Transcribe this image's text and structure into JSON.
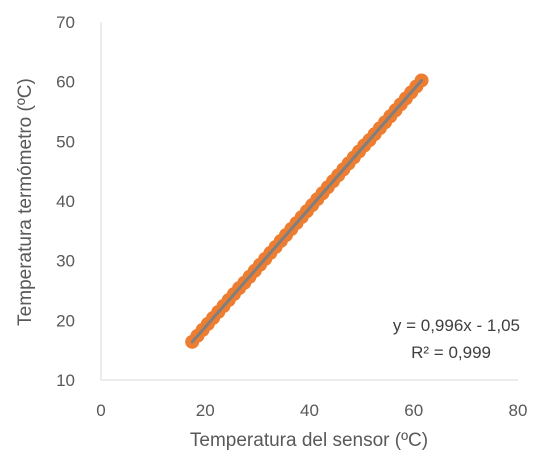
{
  "chart_data": {
    "type": "scatter",
    "title": "",
    "xlabel": "Temperatura del sensor (ºC)",
    "ylabel": "Temperatura termómetro (ºC)",
    "xlim": [
      0,
      80
    ],
    "ylim": [
      10,
      70
    ],
    "x_ticks": [
      0,
      20,
      40,
      60,
      80
    ],
    "y_ticks": [
      10,
      20,
      30,
      40,
      50,
      60,
      70
    ],
    "x_tick_labels": [
      "0",
      "20",
      "40",
      "60",
      "80"
    ],
    "y_tick_labels": [
      "10",
      "20",
      "30",
      "40",
      "50",
      "60",
      "70"
    ],
    "grid": false,
    "legend": "none",
    "marker_color": "#ed7d31",
    "trendline_color": "#7f7f7f",
    "series": [
      {
        "x": [
          17.5,
          18.5,
          19.5,
          20.5,
          21.5,
          22.5,
          23.5,
          24.5,
          25.5,
          26.5,
          27.5,
          28.5,
          29.5,
          30.5,
          31.5,
          32.5,
          33.5,
          34.5,
          35.5,
          36.5,
          37.5,
          38.5,
          39.5,
          40.5,
          41.5,
          42.5,
          43.5,
          44.5,
          45.5,
          46.5,
          47.5,
          48.5,
          49.5,
          50.5,
          51.5,
          52.5,
          53.5,
          54.5,
          55.5,
          56.5,
          57.5,
          58.5,
          59.5,
          60.5,
          61.5
        ],
        "y": [
          16.4,
          17.4,
          18.4,
          19.4,
          20.4,
          21.4,
          22.4,
          23.4,
          24.4,
          25.4,
          26.3,
          27.3,
          28.3,
          29.3,
          30.3,
          31.3,
          32.3,
          33.3,
          34.3,
          35.3,
          36.3,
          37.3,
          38.3,
          39.3,
          40.3,
          41.3,
          42.3,
          43.3,
          44.3,
          45.3,
          46.3,
          47.3,
          48.3,
          49.3,
          50.2,
          51.2,
          52.2,
          53.2,
          54.2,
          55.2,
          56.2,
          57.2,
          58.2,
          59.2,
          60.2
        ]
      }
    ],
    "trendline": {
      "slope": 0.996,
      "intercept": -1.05,
      "x_range": [
        17.5,
        61.5
      ],
      "equation": "y = 0,996x - 1,05",
      "r_squared": "R² = 0,999"
    }
  }
}
